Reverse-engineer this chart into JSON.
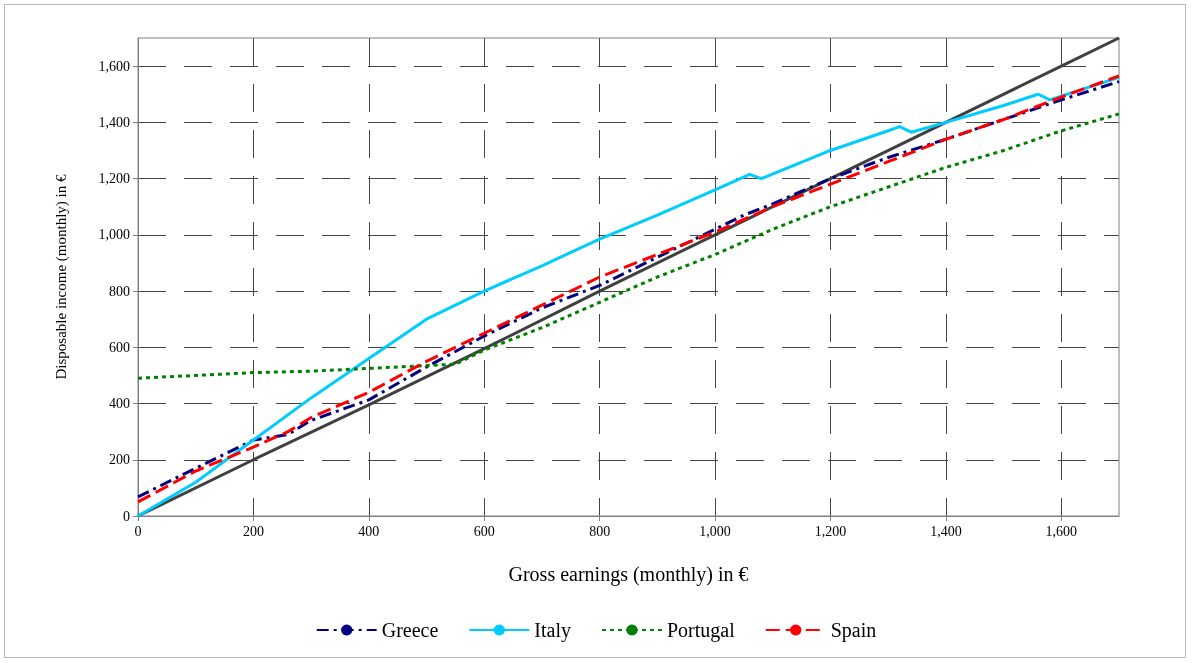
{
  "chart_data": {
    "type": "line",
    "xlabel": "Gross earnings (monthly) in €",
    "ylabel": "Disposable income (monthly) in €",
    "xlim": [
      0,
      1700
    ],
    "ylim": [
      0,
      1700
    ],
    "xticks": [
      0,
      {
        "value": 200,
        "label": "200"
      },
      {
        "value": 400,
        "label": "400"
      },
      {
        "value": 600,
        "label": "600"
      },
      {
        "value": 800,
        "label": "800"
      },
      {
        "value": 1000,
        "label": "1,000"
      },
      {
        "value": 1200,
        "label": "1,200"
      },
      {
        "value": 1400,
        "label": "1,400"
      },
      {
        "value": 1600,
        "label": "1,600"
      }
    ],
    "yticks": [
      0,
      {
        "value": 200,
        "label": "200"
      },
      {
        "value": 400,
        "label": "400"
      },
      {
        "value": 600,
        "label": "600"
      },
      {
        "value": 800,
        "label": "800"
      },
      {
        "value": 1000,
        "label": "1,000"
      },
      {
        "value": 1200,
        "label": "1,200"
      },
      {
        "value": 1400,
        "label": "1,400"
      },
      {
        "value": 1600,
        "label": "1,600"
      }
    ],
    "grid": true,
    "legend": "bottom",
    "marker": "none",
    "series": [
      {
        "color": "#404040",
        "line_style": "solid",
        "x": [
          0,
          200,
          400,
          600,
          800,
          1000,
          1200,
          1400,
          1600,
          1700
        ],
        "values": [
          0,
          200,
          395,
          595,
          800,
          1000,
          1200,
          1400,
          1600,
          1700
        ]
      },
      {
        "name": "Greece",
        "color": "#000080",
        "line_style": "dashdot",
        "x": [
          0,
          100,
          200,
          260,
          300,
          400,
          500,
          600,
          700,
          800,
          900,
          1000,
          1050,
          1100,
          1200,
          1300,
          1400,
          1500,
          1600,
          1700
        ],
        "values": [
          68,
          170,
          270,
          290,
          340,
          413,
          530,
          640,
          740,
          820,
          920,
          1020,
          1070,
          1110,
          1200,
          1275,
          1340,
          1410,
          1480,
          1545
        ]
      },
      {
        "name": "Italy",
        "color": "#00ccff",
        "line_style": "solid",
        "x": [
          0,
          100,
          200,
          300,
          400,
          500,
          600,
          700,
          800,
          900,
          1000,
          1060,
          1080,
          1200,
          1300,
          1320,
          1340,
          1400,
          1500,
          1560,
          1580,
          1700
        ],
        "values": [
          0,
          120,
          270,
          420,
          560,
          700,
          800,
          890,
          985,
          1070,
          1160,
          1215,
          1200,
          1300,
          1370,
          1385,
          1365,
          1400,
          1460,
          1500,
          1480,
          1560
        ]
      },
      {
        "name": "Portugal",
        "color": "#008000",
        "line_style": "dotted",
        "x": [
          0,
          100,
          200,
          300,
          400,
          500,
          550,
          600,
          700,
          800,
          900,
          1000,
          1100,
          1200,
          1300,
          1400,
          1500,
          1600,
          1700
        ],
        "values": [
          490,
          500,
          510,
          515,
          525,
          535,
          540,
          590,
          670,
          760,
          850,
          930,
          1020,
          1100,
          1170,
          1240,
          1300,
          1370,
          1430
        ]
      },
      {
        "name": "Spain",
        "color": "#ff0000",
        "line_style": "dashed",
        "x": [
          0,
          100,
          200,
          260,
          300,
          400,
          500,
          600,
          700,
          800,
          900,
          1000,
          1100,
          1200,
          1300,
          1400,
          1500,
          1600,
          1700
        ],
        "values": [
          50,
          160,
          245,
          300,
          350,
          440,
          550,
          650,
          750,
          850,
          930,
          1010,
          1100,
          1180,
          1260,
          1340,
          1410,
          1490,
          1565
        ]
      }
    ]
  }
}
